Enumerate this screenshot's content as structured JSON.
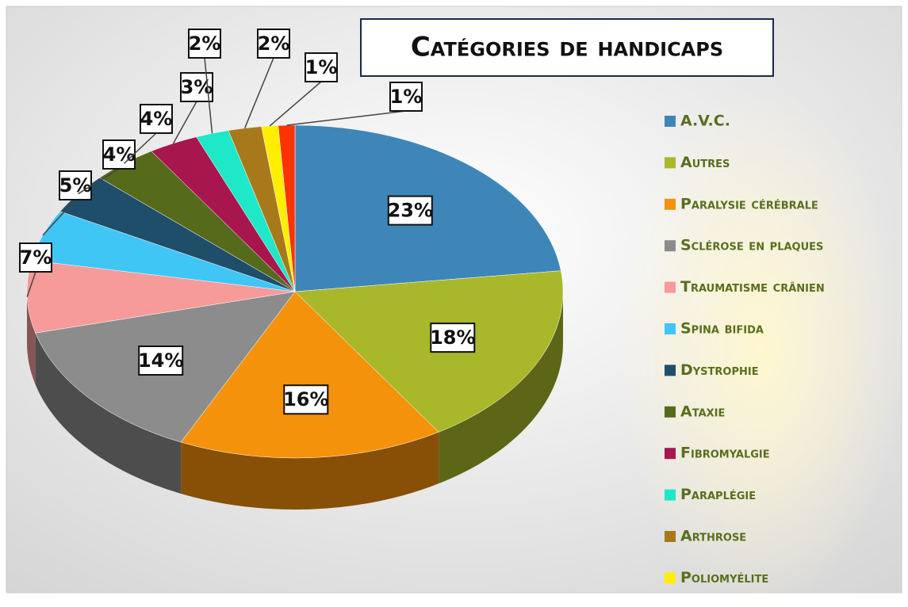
{
  "chart_data": {
    "type": "pie",
    "title": "Catégories de handicaps",
    "categories": [
      "A.V.C.",
      "Autres",
      "Paralysie cérébrale",
      "Sclérose en plaques",
      "Traumatisme crânien",
      "Spina bifida",
      "Dystrophie",
      "Ataxie",
      "Fibromyalgie",
      "Paraplégie",
      "Arthrose",
      "Poliomyélite",
      null
    ],
    "values": [
      23,
      18,
      16,
      14,
      7,
      5,
      4,
      4,
      3,
      2,
      2,
      1,
      1
    ],
    "value_labels": [
      "23%",
      "18%",
      "16%",
      "14%",
      "7%",
      "5%",
      "4%",
      "4%",
      "3%",
      "2%",
      "2%",
      "1%",
      "1%"
    ],
    "colors": [
      "#3f86b8",
      "#a9b82a",
      "#f5920b",
      "#8c8c8c",
      "#f79a9a",
      "#3fc6f5",
      "#1f4e6b",
      "#566a1c",
      "#a8164e",
      "#1ee8c8",
      "#a8791b",
      "#ffee00",
      "#ff3300"
    ],
    "legend": "right"
  }
}
